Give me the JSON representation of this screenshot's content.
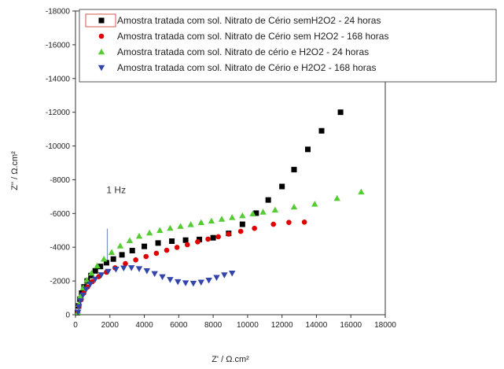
{
  "chart_data": {
    "type": "scatter",
    "title": "",
    "xlabel": "Z' / Ω.cm²",
    "ylabel": "Z'' / Ω.cm²",
    "xlim": [
      0,
      18000
    ],
    "ylim": [
      0,
      -18000
    ],
    "x_ticks": [
      "0",
      "2000",
      "4000",
      "6000",
      "8000",
      "10000",
      "12000",
      "14000",
      "16000",
      "18000"
    ],
    "y_ticks": [
      "0",
      "-2000",
      "-4000",
      "-6000",
      "-8000",
      "-10000",
      "-12000",
      "-14000",
      "-16000",
      "-18000"
    ],
    "grid": false,
    "legend_position": "top",
    "annotations": [
      {
        "text": "1 Hz",
        "x": 1800,
        "y": -7200
      }
    ],
    "colors": {
      "series1": "#000000",
      "series2": "#e00000",
      "series3": "#55cc33",
      "series4": "#3344aa"
    },
    "series": [
      {
        "name": "Amostra tratada com sol. Nitrato de Cério semH2O2 - 24 horas",
        "marker": "square",
        "points": [
          [
            120,
            -120
          ],
          [
            180,
            -520
          ],
          [
            260,
            -920
          ],
          [
            360,
            -1280
          ],
          [
            500,
            -1650
          ],
          [
            680,
            -2000
          ],
          [
            900,
            -2320
          ],
          [
            1150,
            -2600
          ],
          [
            1450,
            -2860
          ],
          [
            1800,
            -3080
          ],
          [
            2200,
            -3300
          ],
          [
            2700,
            -3550
          ],
          [
            3300,
            -3800
          ],
          [
            4000,
            -4050
          ],
          [
            4800,
            -4250
          ],
          [
            5600,
            -4360
          ],
          [
            6400,
            -4420
          ],
          [
            7200,
            -4460
          ],
          [
            8000,
            -4560
          ],
          [
            8900,
            -4820
          ],
          [
            9700,
            -5360
          ],
          [
            10500,
            -6020
          ],
          [
            11200,
            -6800
          ],
          [
            12000,
            -7600
          ],
          [
            12700,
            -8600
          ],
          [
            13500,
            -9800
          ],
          [
            14300,
            -10900
          ],
          [
            15400,
            -12000
          ]
        ]
      },
      {
        "name": "Amostra tratada com sol. Nitrato de Cério sem H2O2 - 168 horas",
        "marker": "circle",
        "points": [
          [
            130,
            -130
          ],
          [
            210,
            -520
          ],
          [
            330,
            -900
          ],
          [
            480,
            -1280
          ],
          [
            700,
            -1640
          ],
          [
            980,
            -1960
          ],
          [
            1350,
            -2260
          ],
          [
            1800,
            -2520
          ],
          [
            2300,
            -2780
          ],
          [
            2900,
            -3030
          ],
          [
            3500,
            -3250
          ],
          [
            4100,
            -3450
          ],
          [
            4700,
            -3640
          ],
          [
            5300,
            -3820
          ],
          [
            5900,
            -3990
          ],
          [
            6500,
            -4150
          ],
          [
            7100,
            -4320
          ],
          [
            7700,
            -4480
          ],
          [
            8300,
            -4620
          ],
          [
            8900,
            -4780
          ],
          [
            9600,
            -4940
          ],
          [
            10400,
            -5120
          ],
          [
            11500,
            -5360
          ],
          [
            12400,
            -5470
          ],
          [
            13300,
            -5490
          ]
        ]
      },
      {
        "name": "Amostra tratada com sol. Nitrato de cério e H2O2 - 24 horas",
        "marker": "triangle-up",
        "points": [
          [
            140,
            -140
          ],
          [
            200,
            -620
          ],
          [
            300,
            -1120
          ],
          [
            450,
            -1600
          ],
          [
            660,
            -2050
          ],
          [
            930,
            -2470
          ],
          [
            1260,
            -2900
          ],
          [
            1650,
            -3300
          ],
          [
            2100,
            -3700
          ],
          [
            2600,
            -4080
          ],
          [
            3150,
            -4400
          ],
          [
            3700,
            -4660
          ],
          [
            4300,
            -4850
          ],
          [
            4900,
            -5000
          ],
          [
            5500,
            -5130
          ],
          [
            6100,
            -5240
          ],
          [
            6700,
            -5350
          ],
          [
            7300,
            -5470
          ],
          [
            7900,
            -5560
          ],
          [
            8500,
            -5670
          ],
          [
            9100,
            -5770
          ],
          [
            9700,
            -5870
          ],
          [
            10300,
            -5980
          ],
          [
            10900,
            -6090
          ],
          [
            11600,
            -6210
          ],
          [
            12700,
            -6390
          ],
          [
            13900,
            -6560
          ],
          [
            15200,
            -6900
          ],
          [
            16600,
            -7280
          ]
        ]
      },
      {
        "name": "Amostra tratada com sol. Nitrato de Cério e H2O2 - 168 horas",
        "marker": "triangle-down",
        "points": [
          [
            150,
            -150
          ],
          [
            200,
            -470
          ],
          [
            290,
            -820
          ],
          [
            430,
            -1160
          ],
          [
            620,
            -1500
          ],
          [
            860,
            -1810
          ],
          [
            1150,
            -2100
          ],
          [
            1500,
            -2360
          ],
          [
            1900,
            -2560
          ],
          [
            2350,
            -2690
          ],
          [
            2800,
            -2760
          ],
          [
            3250,
            -2780
          ],
          [
            3700,
            -2720
          ],
          [
            4150,
            -2600
          ],
          [
            4600,
            -2430
          ],
          [
            5050,
            -2240
          ],
          [
            5500,
            -2080
          ],
          [
            5950,
            -1950
          ],
          [
            6400,
            -1880
          ],
          [
            6850,
            -1860
          ],
          [
            7300,
            -1920
          ],
          [
            7750,
            -2040
          ],
          [
            8200,
            -2200
          ],
          [
            8650,
            -2350
          ],
          [
            9100,
            -2460
          ]
        ]
      }
    ]
  }
}
